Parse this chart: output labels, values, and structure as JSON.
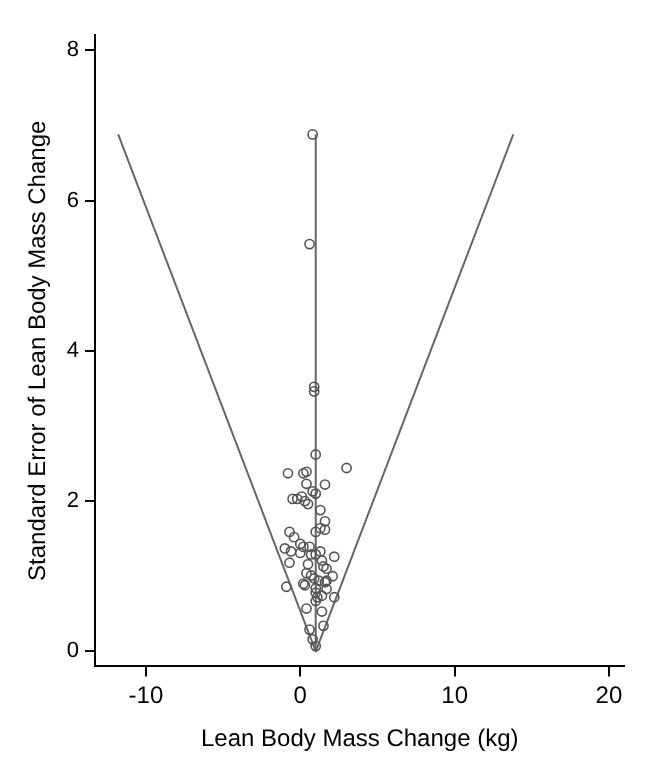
{
  "chart_data": {
    "type": "scatter",
    "xlabel": "Lean Body Mass Change (kg)",
    "ylabel": "Standard Error of Lean Body Mass Change",
    "xlim": [
      -13.3,
      21
    ],
    "ylim": [
      -0.2,
      8.2
    ],
    "xticks": [
      -10,
      0,
      10,
      20
    ],
    "yticks": [
      0,
      2,
      4,
      6,
      8
    ],
    "grid": false,
    "legend": false,
    "series": [
      {
        "type": "scatter",
        "marker": "circle",
        "color": "#555555",
        "x": [
          0.8,
          0.6,
          0.9,
          0.9,
          1.0,
          3.0,
          0.4,
          0.2,
          -0.8,
          1.6,
          0.4,
          0.8,
          1.0,
          -0.5,
          -0.2,
          0.1,
          0.3,
          1.3,
          0.5,
          1.6,
          1.6,
          1.3,
          1.0,
          -0.7,
          -0.4,
          -1.0,
          -0.6,
          0,
          0.2,
          0.6,
          0,
          0.7,
          1.0,
          1.3,
          1.4,
          2.2,
          -0.7,
          0.5,
          1.5,
          1.7,
          0.4,
          0.7,
          0.9,
          1.2,
          2.1,
          1.6,
          1.7,
          0.2,
          0.3,
          1.0,
          1.0,
          1.1,
          1.0,
          -0.9,
          1.7,
          1.4,
          2.2,
          0.4,
          1.4,
          1.5,
          0.6,
          0.8,
          1.0
        ],
        "values": [
          6.88,
          5.42,
          3.52,
          3.46,
          2.62,
          2.44,
          2.39,
          2.37,
          2.37,
          2.22,
          2.23,
          2.13,
          2.1,
          2.03,
          2.03,
          2.06,
          2.0,
          1.88,
          1.96,
          1.73,
          1.62,
          1.64,
          1.59,
          1.59,
          1.52,
          1.37,
          1.33,
          1.43,
          1.39,
          1.39,
          1.31,
          1.29,
          1.29,
          1.33,
          1.21,
          1.26,
          1.18,
          1.16,
          1.13,
          1.1,
          1.04,
          1.01,
          0.97,
          0.94,
          1.0,
          0.92,
          0.94,
          0.9,
          0.88,
          0.84,
          0.78,
          0.72,
          0.67,
          0.86,
          0.83,
          0.74,
          0.72,
          0.57,
          0.53,
          0.34,
          0.29,
          0.16,
          0.07
        ]
      },
      {
        "type": "line",
        "marker": "none",
        "color": "#666666",
        "x": [
          1,
          1
        ],
        "values": [
          0,
          6.88
        ]
      },
      {
        "type": "line",
        "marker": "none",
        "color": "#666666",
        "x": [
          -11.8,
          1,
          13.8
        ],
        "values": [
          6.88,
          0,
          6.88
        ]
      }
    ]
  }
}
